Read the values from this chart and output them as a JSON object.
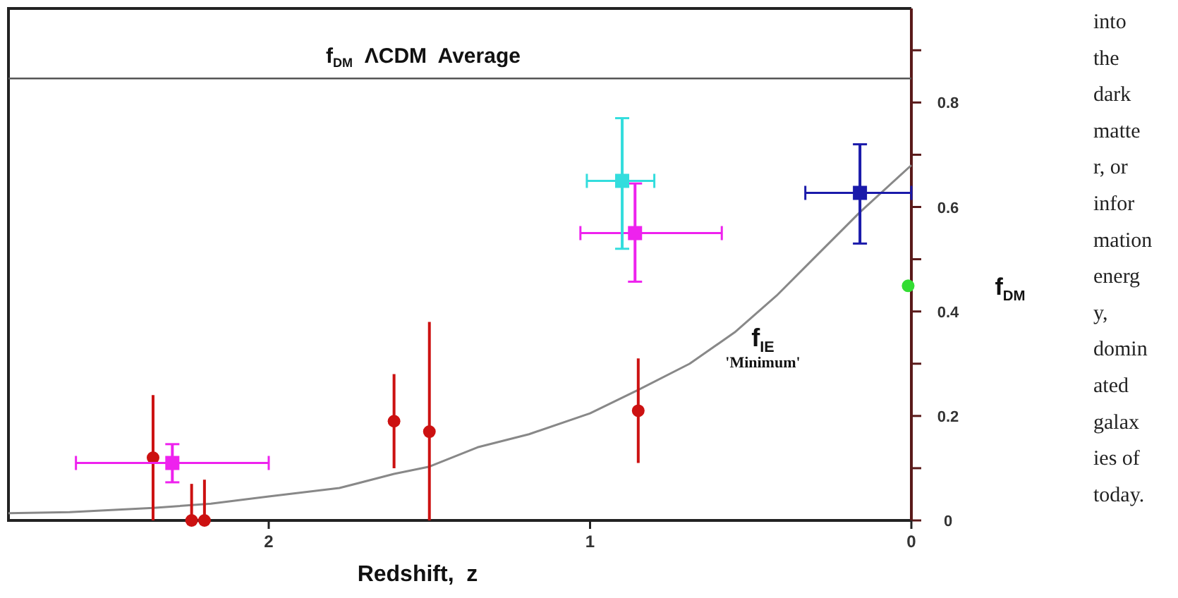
{
  "chart_data": {
    "type": "scatter",
    "xlabel": "Redshift,  z",
    "ylabel": "f$_{DM}$",
    "xlim": [
      2.81,
      0
    ],
    "xticks": [
      2,
      1,
      0
    ],
    "ylim": [
      0,
      0.98
    ],
    "yticks": [
      0,
      {
        "value": 0.1,
        "label": null
      },
      0.2,
      {
        "value": 0.3,
        "label": null
      },
      0.4,
      {
        "value": 0.5,
        "label": null
      },
      0.6,
      {
        "value": 0.7,
        "label": null
      },
      0.8,
      {
        "value": 0.9,
        "label": null
      }
    ],
    "grid": false,
    "ref_lines": [
      {
        "axis": "y",
        "value": 0.846,
        "label": "f$_{DM}$  ΛCDM  Average",
        "color": "#555555"
      }
    ],
    "annotations": [
      {
        "text": "f$_{IE}$ 'Minimum'",
        "x": 0.55,
        "y": 0.36
      },
      "into the dark matter, or information energy, dominated galaxies of today."
    ],
    "series": [
      {
        "type": "line",
        "color": "#888888",
        "marker": "none",
        "x": [
          2.81,
          2.62,
          2.36,
          2.18,
          2.0,
          1.78,
          1.61,
          1.5,
          1.35,
          1.19,
          1.0,
          0.85,
          0.69,
          0.55,
          0.42,
          0.29,
          0.16,
          0
        ],
        "values": [
          0.014,
          0.016,
          0.024,
          0.032,
          0.046,
          0.062,
          0.089,
          0.103,
          0.14,
          0.165,
          0.205,
          0.25,
          0.3,
          0.36,
          0.43,
          0.51,
          0.59,
          0.68
        ]
      },
      {
        "color": "#cc1111",
        "marker": "circle",
        "x": [
          2.36,
          2.24,
          2.2,
          1.61,
          1.5,
          0.85
        ],
        "values": [
          0.12,
          0,
          0,
          0.19,
          0.17,
          0.21
        ],
        "errors": [
          [
            0,
            0.24
          ],
          [
            0,
            0.07
          ],
          [
            0,
            0.078
          ],
          [
            0.1,
            0.28
          ],
          [
            0,
            0.38
          ],
          [
            0.11,
            0.31
          ]
        ]
      },
      {
        "color": "#ee22ee",
        "marker": "square",
        "x": [
          2.3,
          0.86
        ],
        "values": [
          0.11,
          0.55
        ],
        "errors": [
          [
            0.073,
            0.146
          ],
          [
            0.457,
            0.645
          ]
        ],
        "xerrors": [
          [
            2.0,
            2.6
          ],
          [
            0.59,
            1.03
          ]
        ]
      },
      {
        "color": "#33dddd",
        "marker": "square",
        "x": [
          0.9
        ],
        "values": [
          0.65
        ],
        "errors": [
          [
            0.52,
            0.77
          ]
        ],
        "xerrors": [
          [
            0.8,
            1.01
          ]
        ]
      },
      {
        "color": "#1a1aaa",
        "marker": "square",
        "x": [
          0.16
        ],
        "values": [
          0.627
        ],
        "errors": [
          [
            0.53,
            0.72
          ]
        ],
        "xerrors": [
          [
            0,
            0.33
          ]
        ]
      },
      {
        "color": "#33dd33",
        "marker": "circle",
        "x": [
          0.01
        ],
        "values": [
          0.449
        ]
      }
    ]
  }
}
